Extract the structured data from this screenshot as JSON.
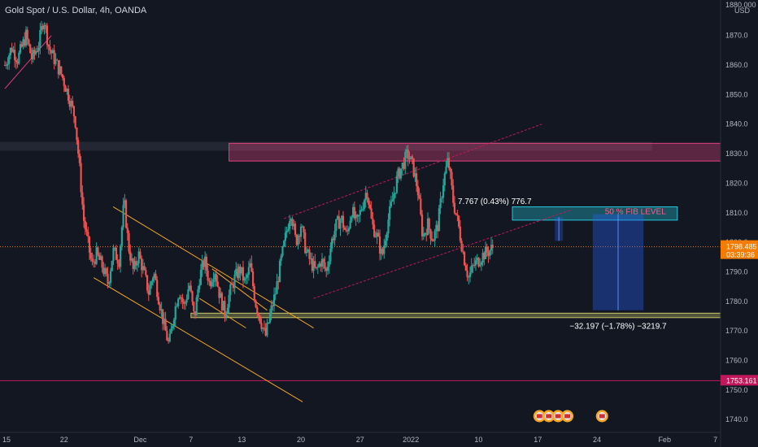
{
  "chart_data": {
    "type": "candlestick",
    "title": "Gold Spot / U.S. Dollar, 4h, OANDA",
    "currency": "USD",
    "ylim": [
      1740,
      1880
    ],
    "y_ticks": [
      1740,
      1750,
      1760,
      1770,
      1780,
      1790,
      1800,
      1810,
      1820,
      1830,
      1840,
      1850,
      1860,
      1870
    ],
    "x_range_days": [
      0,
      85
    ],
    "x_ticks": [
      {
        "label": "15",
        "day": 0
      },
      {
        "label": "22",
        "day": 7
      },
      {
        "label": "Dec",
        "day": 16
      },
      {
        "label": "7",
        "day": 22
      },
      {
        "label": "13",
        "day": 28
      },
      {
        "label": "20",
        "day": 35
      },
      {
        "label": "27",
        "day": 42
      },
      {
        "label": "2022",
        "day": 48
      },
      {
        "label": "10",
        "day": 56
      },
      {
        "label": "17",
        "day": 63
      },
      {
        "label": "24",
        "day": 70
      },
      {
        "label": "Feb",
        "day": 78
      },
      {
        "label": "7",
        "day": 84
      }
    ],
    "price_path": [
      [
        0,
        1860
      ],
      [
        0.8,
        1866
      ],
      [
        1.5,
        1862
      ],
      [
        2.5,
        1870
      ],
      [
        3.2,
        1862
      ],
      [
        4,
        1867
      ],
      [
        4.6,
        1876
      ],
      [
        5.2,
        1866
      ],
      [
        6,
        1861
      ],
      [
        6.8,
        1856
      ],
      [
        7.6,
        1849
      ],
      [
        8.3,
        1842
      ],
      [
        8.8,
        1826
      ],
      [
        9.3,
        1808
      ],
      [
        9.8,
        1800
      ],
      [
        10.3,
        1792
      ],
      [
        10.8,
        1796
      ],
      [
        11.5,
        1792
      ],
      [
        12.2,
        1786
      ],
      [
        12.8,
        1797
      ],
      [
        13.5,
        1794
      ],
      [
        14.1,
        1814
      ],
      [
        14.6,
        1799
      ],
      [
        15.2,
        1790
      ],
      [
        15.8,
        1796
      ],
      [
        16.4,
        1790
      ],
      [
        17.0,
        1783
      ],
      [
        17.6,
        1790
      ],
      [
        18.2,
        1781
      ],
      [
        18.8,
        1772
      ],
      [
        19.4,
        1765
      ],
      [
        20.0,
        1776
      ],
      [
        20.6,
        1784
      ],
      [
        21.2,
        1778
      ],
      [
        21.8,
        1786
      ],
      [
        22.4,
        1774
      ],
      [
        23.0,
        1788
      ],
      [
        23.6,
        1794
      ],
      [
        24.2,
        1786
      ],
      [
        24.8,
        1791
      ],
      [
        25.4,
        1782
      ],
      [
        26.0,
        1776
      ],
      [
        26.6,
        1783
      ],
      [
        27.2,
        1788
      ],
      [
        27.8,
        1791
      ],
      [
        28.4,
        1786
      ],
      [
        29.0,
        1792
      ],
      [
        29.6,
        1780
      ],
      [
        30.2,
        1774
      ],
      [
        30.8,
        1768
      ],
      [
        31.4,
        1776
      ],
      [
        32.0,
        1783
      ],
      [
        32.6,
        1793
      ],
      [
        33.2,
        1802
      ],
      [
        33.8,
        1811
      ],
      [
        34.4,
        1800
      ],
      [
        35.0,
        1806
      ],
      [
        35.6,
        1797
      ],
      [
        36.2,
        1793
      ],
      [
        36.8,
        1790
      ],
      [
        37.4,
        1794
      ],
      [
        38.0,
        1790
      ],
      [
        38.6,
        1800
      ],
      [
        39.2,
        1806
      ],
      [
        39.8,
        1808
      ],
      [
        40.4,
        1802
      ],
      [
        41.0,
        1811
      ],
      [
        41.6,
        1806
      ],
      [
        42.2,
        1812
      ],
      [
        42.8,
        1818
      ],
      [
        43.4,
        1806
      ],
      [
        44.0,
        1802
      ],
      [
        44.6,
        1795
      ],
      [
        45.2,
        1806
      ],
      [
        45.8,
        1814
      ],
      [
        46.4,
        1822
      ],
      [
        47.0,
        1826
      ],
      [
        47.6,
        1830
      ],
      [
        48.2,
        1826
      ],
      [
        48.8,
        1818
      ],
      [
        49.4,
        1802
      ],
      [
        50.0,
        1806
      ],
      [
        50.6,
        1801
      ],
      [
        51.2,
        1806
      ],
      [
        51.8,
        1820
      ],
      [
        52.4,
        1828
      ],
      [
        53.0,
        1814
      ],
      [
        53.6,
        1806
      ],
      [
        54.2,
        1796
      ],
      [
        54.8,
        1788
      ],
      [
        55.4,
        1792
      ],
      [
        56.0,
        1794
      ],
      [
        56.6,
        1796
      ],
      [
        57.2,
        1797
      ],
      [
        57.8,
        1798.485
      ]
    ],
    "zones": [
      {
        "name": "resistance",
        "y_from": 1827.5,
        "y_to": 1833.5,
        "day_from": 26.5,
        "day_to": 85,
        "color": "#e2417f"
      },
      {
        "name": "support",
        "y_from": 1774.5,
        "y_to": 1776,
        "day_from": 22,
        "day_to": 86,
        "color": "#c9c46a"
      },
      {
        "name": "fib",
        "y_from": 1807.5,
        "y_to": 1812,
        "day_from": 60,
        "day_to": 79.5,
        "color": "#26c6da"
      }
    ],
    "fib_label": "50 % FIB LEVEL",
    "measure_up": {
      "text": "7.767 (0.43%) 776.7",
      "day": 65.4,
      "y_from": 1800.5,
      "y_to": 1808.5
    },
    "measure_down": {
      "text": "−32.197 (−1.78%) −3219.7",
      "day_from": 69.5,
      "day_to": 75.5,
      "y_from": 1809.5,
      "y_to": 1777,
      "color": "#2962ff"
    },
    "trend_lines": [
      {
        "from": [
          12.8,
          1812
        ],
        "to": [
          36.5,
          1771
        ],
        "color": "#f5a623"
      },
      {
        "from": [
          10.5,
          1788
        ],
        "to": [
          35.2,
          1746
        ],
        "color": "#f5a623"
      },
      {
        "from": [
          24.5,
          1791
        ],
        "to": [
          31.0,
          1777
        ],
        "color": "#f5a623"
      },
      {
        "from": [
          23.0,
          1781
        ],
        "to": [
          28.5,
          1771
        ],
        "color": "#f5a623"
      },
      {
        "from": [
          33.0,
          1808
        ],
        "to": [
          63.5,
          1840
        ],
        "color": "#c2185b"
      },
      {
        "from": [
          36.5,
          1781
        ],
        "to": [
          67.0,
          1811
        ],
        "color": "#c2185b"
      },
      {
        "from": [
          0,
          1852
        ],
        "to": [
          5.5,
          1870
        ],
        "color": "#e2417f"
      }
    ],
    "price_lines": [
      {
        "value": 1798.485,
        "color": "#f57c00",
        "dash": true
      },
      {
        "value": 1753.161,
        "color": "#c2185b",
        "dash": false
      }
    ],
    "band": {
      "y_from": 1831,
      "y_to": 1834,
      "day_to": 76.5,
      "color": "#2a2e39"
    },
    "price_labels": {
      "current": {
        "value": "1798.485",
        "countdown": "03:39:36",
        "color": "#f57c00"
      },
      "level": {
        "value": "1753.161",
        "color": "#c2185b"
      }
    },
    "top_label": "1880.000",
    "event_icons": {
      "count": 4,
      "day_start": 63.2,
      "day_step": 1.1,
      "extra_day": 70.6
    }
  }
}
